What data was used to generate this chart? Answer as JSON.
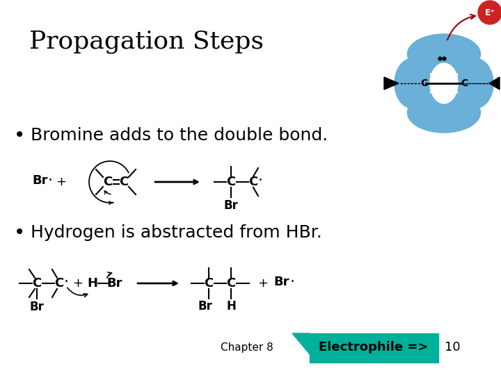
{
  "title": "Propagation Steps",
  "title_fontsize": 26,
  "background_color": "#ffffff",
  "bullet1": "Bromine adds to the double bond.",
  "bullet2": "Hydrogen is abstracted from HBr.",
  "bullet_fontsize": 18,
  "chapter_text": "Chapter 8",
  "electrophile_text": "Electrophile =>",
  "page_num": "10",
  "teal_color": "#00b09a",
  "blue_orbital": "#6ab0d8",
  "red_eplus": "#cc2222",
  "bullet_color": "#000000",
  "title_color": "#000000"
}
